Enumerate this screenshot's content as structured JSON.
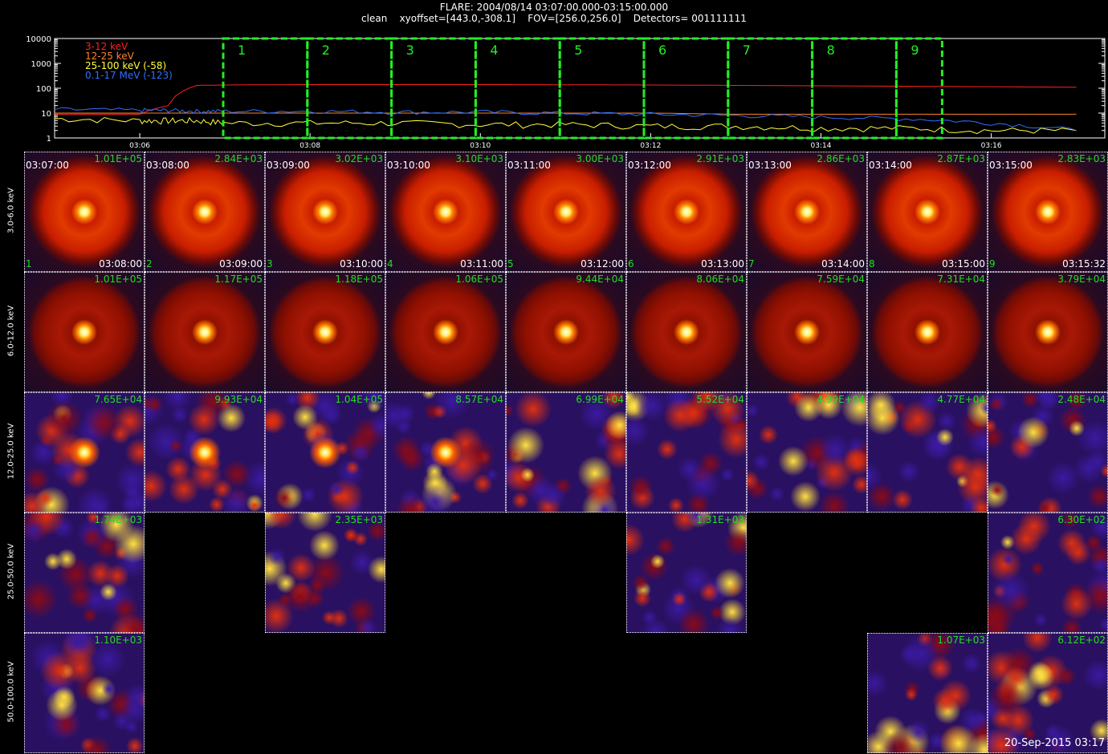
{
  "header": {
    "line1": "FLARE: 2004/08/14 03:07:00.000-03:15:00.000",
    "line2": "clean    xyoffset=[443.0,-308.1]    FOV=[256.0,256.0]    Detectors= 001111111"
  },
  "lightcurve": {
    "legend": [
      {
        "label": "3-12 keV",
        "color": "#ff2020"
      },
      {
        "label": "12-25 keV",
        "color": "#ff8030"
      },
      {
        "label": "25-100 keV (-58)",
        "color": "#ffff40"
      },
      {
        "label": "0.1-17 MeV (-123)",
        "color": "#3070ff"
      }
    ],
    "y_ticks": [
      "10000",
      "1000",
      "100",
      "10",
      "1"
    ],
    "x_ticks": [
      "03:06",
      "03:08",
      "03:10",
      "03:12",
      "03:14",
      "03:16"
    ],
    "intervals": [
      "1",
      "2",
      "3",
      "4",
      "5",
      "6",
      "7",
      "8",
      "9"
    ],
    "interval_color": "#22ee22"
  },
  "chart_data": {
    "type": "line",
    "title": "FLARE: 2004/08/14 03:07:00.000-03:15:00.000",
    "xlabel": "",
    "ylabel": "",
    "y_scale": "log",
    "ylim": [
      1,
      10000
    ],
    "x": [
      "03:05:00",
      "03:06:00",
      "03:06:20",
      "03:06:40",
      "03:07:00",
      "03:08:00",
      "03:09:00",
      "03:10:00",
      "03:11:00",
      "03:12:00",
      "03:13:00",
      "03:14:00",
      "03:15:00",
      "03:16:00",
      "03:17:00"
    ],
    "series": [
      {
        "name": "3-12 keV",
        "values": [
          9,
          9,
          20,
          130,
          135,
          140,
          140,
          140,
          138,
          135,
          130,
          125,
          120,
          115,
          110
        ]
      },
      {
        "name": "12-25 keV",
        "values": [
          10,
          10,
          10,
          10,
          10,
          10,
          10,
          10,
          10,
          10,
          9,
          9,
          9,
          9,
          9
        ]
      },
      {
        "name": "25-100 keV (-58)",
        "values": [
          6,
          5,
          5,
          5,
          4,
          4,
          4,
          3.5,
          3.5,
          3,
          3,
          2.5,
          2.5,
          2,
          2
        ]
      },
      {
        "name": "0.1-17 MeV (-123)",
        "values": [
          14,
          13,
          13,
          12,
          12,
          12,
          11,
          11,
          10,
          9,
          8,
          7,
          6,
          4,
          2
        ]
      }
    ]
  },
  "rows": [
    {
      "label": "3.0-6.0 keV",
      "style": "ring-bright"
    },
    {
      "label": "6.0-12.0 keV",
      "style": "ring-dim"
    },
    {
      "label": "12.0-25.0 keV",
      "style": "noise"
    },
    {
      "label": "25.0-50.0 keV",
      "style": "noise"
    },
    {
      "label": "50.0-100.0 keV",
      "style": "noise"
    }
  ],
  "times": {
    "start": [
      "03:07:00",
      "03:08:00",
      "03:09:00",
      "03:10:00",
      "03:11:00",
      "03:12:00",
      "03:13:00",
      "03:14:00",
      "03:15:00"
    ],
    "end": [
      "03:08:00",
      "03:09:00",
      "03:10:00",
      "03:11:00",
      "03:12:00",
      "03:13:00",
      "03:14:00",
      "03:15:00",
      "03:15:32"
    ]
  },
  "cells": [
    [
      "1.01E+05",
      "2.84E+03",
      "3.02E+03",
      "3.10E+03",
      "3.00E+03",
      "2.91E+03",
      "2.86E+03",
      "2.87E+03",
      "2.83E+03"
    ],
    [
      "1.01E+05",
      "1.17E+05",
      "1.18E+05",
      "1.06E+05",
      "9.44E+04",
      "8.06E+04",
      "7.59E+04",
      "7.31E+04",
      "3.79E+04"
    ],
    [
      "7.65E+04",
      "9.93E+04",
      "1.04E+05",
      "8.57E+04",
      "6.99E+04",
      "5.52E+04",
      "4.99E+04",
      "4.77E+04",
      "2.48E+04"
    ],
    [
      "1.74E+03",
      null,
      "2.35E+03",
      null,
      null,
      "1.31E+03",
      null,
      null,
      "6.30E+02"
    ],
    [
      "1.10E+03",
      null,
      null,
      null,
      null,
      null,
      null,
      "1.07E+03",
      "6.12E+02"
    ]
  ],
  "stamp": "20-Sep-2015 03:17"
}
